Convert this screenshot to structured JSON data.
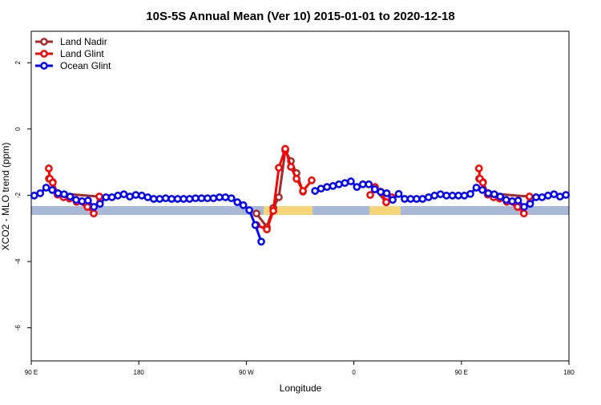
{
  "chart_data": {
    "type": "line",
    "title": "10S-5S Annual Mean (Ver 10)   2015-01-01 to 2020-12-18",
    "x_label": "Longitude",
    "y_label": "XCO2 - MLO trend (ppm)",
    "xlim": [
      90,
      540
    ],
    "ylim": [
      -7.0,
      2.95
    ],
    "xticks": [
      {
        "value": 90,
        "label": "90 E"
      },
      180,
      {
        "value": 270,
        "label": "90 W"
      },
      {
        "value": 360,
        "label": "0"
      },
      {
        "value": 450,
        "label": "90 E"
      },
      {
        "value": 540,
        "label": "180"
      }
    ],
    "yticks": [
      -6,
      -4,
      -2,
      0,
      2
    ],
    "legend": "top-left",
    "series": [
      {
        "name": "Land Nadir",
        "color": "#a52a2a",
        "x": [
          104.8,
          108,
          112,
          147,
          null,
          278.5,
          287.2,
          292.6,
          297.2,
          302.6,
          307.3,
          312,
          317.4,
          null,
          377.7,
          387.1,
          null,
          464.8,
          468,
          472,
          507
        ],
        "values": [
          -1.5,
          -1.6,
          -1.94,
          -2.04,
          null,
          -2.55,
          -2.96,
          -2.38,
          -2.06,
          -0.65,
          -0.97,
          -1.33,
          -1.89,
          null,
          -1.82,
          -2.21,
          null,
          -1.5,
          -1.6,
          -1.94,
          -2.04
        ]
      },
      {
        "name": "Land Glint",
        "color": "#ff0000",
        "x": [
          104.7,
          105.5,
          108,
          112,
          117,
          122,
          128,
          137,
          142.3,
          147,
          null,
          278.5,
          287.2,
          292.6,
          297.2,
          302.6,
          307.3,
          312,
          317.4,
          324.7,
          null,
          373.7,
          377.7,
          382.4,
          387.1,
          391.8,
          null,
          464.7,
          465.5,
          468,
          472,
          477,
          482,
          488,
          497,
          502.3,
          507
        ],
        "values": [
          -1.19,
          -1.5,
          -1.62,
          -1.98,
          -2.06,
          -2.1,
          -2.2,
          -2.35,
          -2.55,
          -2.04,
          null,
          -2.9,
          -3.03,
          -2.47,
          -1.17,
          -0.6,
          -1.14,
          -1.5,
          -1.87,
          -1.55,
          null,
          -1.99,
          -1.75,
          -1.89,
          -2.21,
          -2.06,
          null,
          -1.19,
          -1.5,
          -1.62,
          -1.98,
          -2.06,
          -2.1,
          -2.2,
          -2.35,
          -2.55,
          -2.04
        ]
      },
      {
        "name": "Ocean Glint",
        "color": "#0000ff",
        "x": [
          92.5,
          97.5,
          102.5,
          107.5,
          112.5,
          117.5,
          122.5,
          127.5,
          132.5,
          137.5,
          142.5,
          147.5,
          152.5,
          157.5,
          162.5,
          167.5,
          172.5,
          177.5,
          182.5,
          187.5,
          192.5,
          197.5,
          202.5,
          207.5,
          212.5,
          217.5,
          222.5,
          227.5,
          232.5,
          237.5,
          242.5,
          247.5,
          252.5,
          257.5,
          262.5,
          267.5,
          272.5,
          277.5,
          282.5,
          null,
          327.5,
          332.5,
          337.5,
          342.5,
          347.5,
          352.5,
          357.5,
          362.5,
          367.5,
          372.5,
          377.5,
          382.5,
          387.5,
          392.5,
          397.5,
          402.5,
          407.5,
          412.5,
          417.5,
          422.5,
          427.5,
          432.5,
          437.5,
          442.5,
          447.5,
          452.5,
          457.5,
          462.5,
          467.5,
          472.5,
          477.5,
          482.5,
          487.5,
          492.5,
          497.5,
          502.5,
          507.5,
          512.5,
          517.5,
          522.5,
          527.5,
          532.5,
          537.5
        ],
        "values": [
          -2.01,
          -1.94,
          -1.77,
          -1.84,
          -1.94,
          -1.97,
          -2.04,
          -2.14,
          -2.18,
          -2.16,
          -2.35,
          -2.26,
          -2.06,
          -2.06,
          -2.01,
          -1.97,
          -2.04,
          -1.99,
          -2.01,
          -2.06,
          -2.11,
          -2.11,
          -2.09,
          -2.11,
          -2.11,
          -2.11,
          -2.11,
          -2.09,
          -2.09,
          -2.09,
          -2.09,
          -2.06,
          -2.06,
          -2.09,
          -2.21,
          -2.3,
          -2.45,
          -2.9,
          -3.4,
          null,
          -1.87,
          -1.8,
          -1.75,
          -1.72,
          -1.67,
          -1.63,
          -1.58,
          -1.75,
          -1.67,
          -1.67,
          -1.82,
          -1.9,
          -1.94,
          -2.14,
          -1.96,
          -2.11,
          -2.11,
          -2.11,
          -2.11,
          -2.06,
          -2.01,
          -1.97,
          -2.01,
          -2.01,
          -2.01,
          -2.01,
          -1.96,
          -1.77,
          -1.84,
          -1.94,
          -1.97,
          -2.04,
          -2.14,
          -2.18,
          -2.16,
          -2.35,
          -2.26,
          -2.06,
          -2.06,
          -2.01,
          -1.97,
          -2.04,
          -1.99
        ]
      }
    ]
  }
}
